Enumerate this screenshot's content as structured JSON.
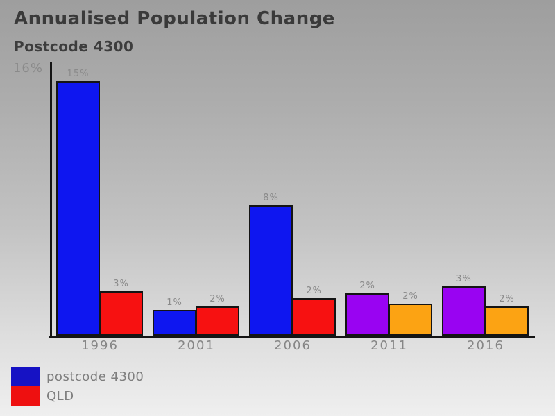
{
  "header": {
    "title": "Annualised Population Change",
    "subtitle": "Postcode 4300"
  },
  "chart_data": {
    "type": "bar",
    "title": "Annualised Population Change",
    "subtitle": "Postcode 4300",
    "y_axis_top_label": "16%",
    "ylim": [
      0,
      16
    ],
    "grid": false,
    "legend_position": "bottom-left",
    "categories": [
      "1996",
      "2001",
      "2006",
      "2011",
      "2016"
    ],
    "series": [
      {
        "name": "postcode 4300",
        "values": [
          15,
          1,
          8,
          2,
          3
        ],
        "display_labels": [
          "15%",
          "1%",
          "8%",
          "2%",
          "3%"
        ],
        "values_precise_pct": [
          15.0,
          1.5,
          7.7,
          2.5,
          2.9
        ],
        "bar_colors": [
          "#0E16F0",
          "#0E16F0",
          "#0E16F0",
          "#9903F2",
          "#9903F2"
        ]
      },
      {
        "name": "QLD",
        "values": [
          3,
          2,
          2,
          2,
          2
        ],
        "display_labels": [
          "3%",
          "2%",
          "2%",
          "2%",
          "2%"
        ],
        "values_precise_pct": [
          2.6,
          1.7,
          2.2,
          1.9,
          1.7
        ],
        "bar_colors": [
          "#F71111",
          "#F71111",
          "#F71111",
          "#FCA313",
          "#FCA313"
        ]
      }
    ],
    "legend": [
      {
        "label": "postcode 4300",
        "color": "#1612C4"
      },
      {
        "label": "QLD",
        "color": "#EE1010"
      }
    ]
  },
  "styles": {
    "axis_color": "#141414",
    "value_label_color": "#8a8a8a",
    "category_label_color": "#868686",
    "title_color": "#3a3a3a",
    "background_top": "#9e9e9e",
    "background_bottom": "#efefef"
  }
}
